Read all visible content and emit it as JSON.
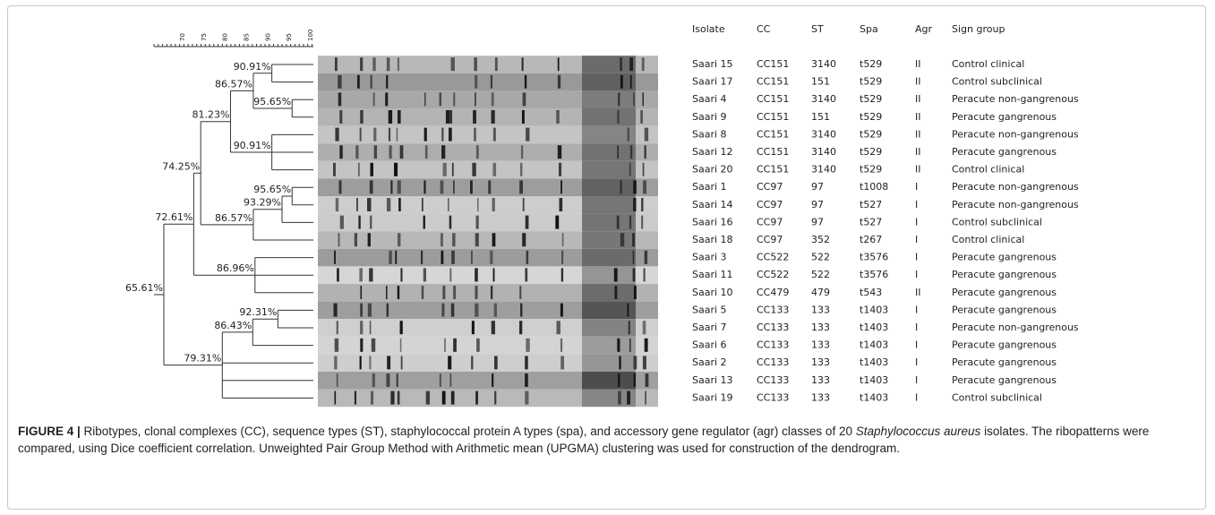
{
  "scale": {
    "ticks": [
      "70",
      "75",
      "80",
      "85",
      "90",
      "95",
      "100"
    ]
  },
  "dendrogram": {
    "nodes": [
      {
        "label": "90.91%"
      },
      {
        "label": "95.65%"
      },
      {
        "label": "86.57%"
      },
      {
        "label": "90.91%"
      },
      {
        "label": "81.23%"
      },
      {
        "label": "95.65%"
      },
      {
        "label": "93.29%"
      },
      {
        "label": "86.57%"
      },
      {
        "label": "74.25%"
      },
      {
        "label": "86.96%"
      },
      {
        "label": "72.61%"
      },
      {
        "label": "92.31%"
      },
      {
        "label": "86.43%"
      },
      {
        "label": "79.31%"
      },
      {
        "label": "65.61%"
      }
    ]
  },
  "table": {
    "header": [
      "Isolate",
      "CC",
      "ST",
      "Spa",
      "Agr",
      "Sign group"
    ],
    "rows": [
      [
        "Saari 15",
        "CC151",
        "3140",
        "t529",
        "II",
        "Control clinical"
      ],
      [
        "Saari 17",
        "CC151",
        "151",
        "t529",
        "II",
        "Control subclinical"
      ],
      [
        "Saari 4",
        "CC151",
        "3140",
        "t529",
        "II",
        "Peracute non-gangrenous"
      ],
      [
        "Saari 9",
        "CC151",
        "151",
        "t529",
        "II",
        "Peracute gangrenous"
      ],
      [
        "Saari 8",
        "CC151",
        "3140",
        "t529",
        "II",
        "Peracute non-gangrenous"
      ],
      [
        "Saari 12",
        "CC151",
        "3140",
        "t529",
        "II",
        "Peracute gangrenous"
      ],
      [
        "Saari 20",
        "CC151",
        "3140",
        "t529",
        "II",
        "Control clinical"
      ],
      [
        "Saari 1",
        "CC97",
        "97",
        "t1008",
        "I",
        "Peracute non-gangrenous"
      ],
      [
        "Saari 14",
        "CC97",
        "97",
        "t527",
        "I",
        "Peracute non-gangrenous"
      ],
      [
        "Saari 16",
        "CC97",
        "97",
        "t527",
        "I",
        "Control subclinical"
      ],
      [
        "Saari 18",
        "CC97",
        "352",
        "t267",
        "I",
        "Control clinical"
      ],
      [
        "Saari 3",
        "CC522",
        "522",
        "t3576",
        "I",
        "Peracute gangrenous"
      ],
      [
        "Saari 11",
        "CC522",
        "522",
        "t3576",
        "I",
        "Peracute gangrenous"
      ],
      [
        "Saari 10",
        "CC479",
        "479",
        "t543",
        "II",
        "Peracute gangrenous"
      ],
      [
        "Saari 5",
        "CC133",
        "133",
        "t1403",
        "I",
        "Peracute gangrenous"
      ],
      [
        "Saari 7",
        "CC133",
        "133",
        "t1403",
        "I",
        "Peracute non-gangrenous"
      ],
      [
        "Saari 6",
        "CC133",
        "133",
        "t1403",
        "I",
        "Peracute gangrenous"
      ],
      [
        "Saari 2",
        "CC133",
        "133",
        "t1403",
        "I",
        "Peracute gangrenous"
      ],
      [
        "Saari 13",
        "CC133",
        "133",
        "t1403",
        "I",
        "Peracute gangrenous"
      ],
      [
        "Saari 19",
        "CC133",
        "133",
        "t1403",
        "I",
        "Control subclinical"
      ]
    ]
  },
  "caption": {
    "label": "FIGURE 4 |",
    "text": " Ribotypes, clonal complexes (CC), sequence types (ST), staphylococcal protein A types (spa), and accessory gene regulator (agr) classes of 20 ",
    "species": "Staphylococcus aureus",
    "text2": " isolates. The ribopatterns were compared, using Dice coefficient correlation. Unweighted Pair Group Method with Arithmetic mean (UPGMA) clustering was used for construction of the dendrogram."
  }
}
